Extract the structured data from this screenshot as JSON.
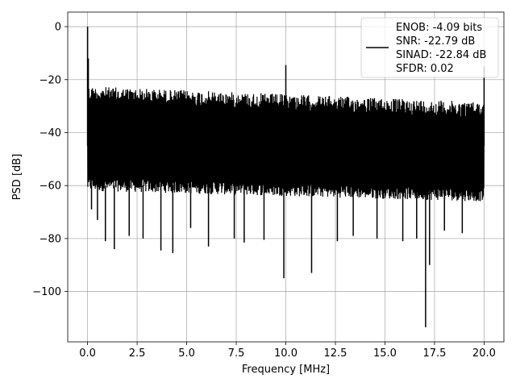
{
  "chart_data": {
    "type": "line",
    "title": "",
    "xlabel": "Frequency [MHz]",
    "ylabel": "PSD [dB]",
    "xlim": [
      -1.0,
      21.0
    ],
    "ylim": [
      -119.0,
      5.5
    ],
    "grid": true,
    "legend_placement": "top-right",
    "line_color": "#000000",
    "x_ticks": [
      {
        "value": 0.0,
        "label": "0.0"
      },
      {
        "value": 2.5,
        "label": "2.5"
      },
      {
        "value": 5.0,
        "label": "5.0"
      },
      {
        "value": 7.5,
        "label": "7.5"
      },
      {
        "value": 10.0,
        "label": "10.0"
      },
      {
        "value": 12.5,
        "label": "12.5"
      },
      {
        "value": 15.0,
        "label": "15.0"
      },
      {
        "value": 17.5,
        "label": "17.5"
      },
      {
        "value": 20.0,
        "label": "20.0"
      }
    ],
    "y_ticks": [
      {
        "value": 0,
        "label": "0"
      },
      {
        "value": -20,
        "label": "−20"
      },
      {
        "value": -40,
        "label": "−40"
      },
      {
        "value": -60,
        "label": "−60"
      },
      {
        "value": -80,
        "label": "−80"
      },
      {
        "value": -100,
        "label": "−100"
      }
    ],
    "legend_lines": [
      "ENOB: -4.09 bits",
      "SNR: -22.79 dB",
      "SINAD: -22.84 dB",
      "SFDR: 0.02"
    ],
    "series": [
      {
        "noise_band": {
          "x_range": [
            0.0,
            20.0
          ],
          "upper_start_db": -22.5,
          "upper_end_db": -28.5,
          "lower_start_db": -62.0,
          "lower_end_db": -66.0
        },
        "spikes": [
          {
            "x": 0.0,
            "y": 0
          },
          {
            "x": 0.04,
            "y": -12
          },
          {
            "x": 10.0,
            "y": -14.5
          },
          {
            "x": 20.0,
            "y": -15
          }
        ],
        "dips": [
          {
            "x": 0.2,
            "y": -69
          },
          {
            "x": 0.5,
            "y": -73
          },
          {
            "x": 0.9,
            "y": -81
          },
          {
            "x": 1.35,
            "y": -84
          },
          {
            "x": 2.1,
            "y": -79
          },
          {
            "x": 2.8,
            "y": -80
          },
          {
            "x": 3.7,
            "y": -84.5
          },
          {
            "x": 4.3,
            "y": -85.5
          },
          {
            "x": 5.2,
            "y": -76
          },
          {
            "x": 6.1,
            "y": -83
          },
          {
            "x": 7.4,
            "y": -80
          },
          {
            "x": 7.9,
            "y": -81.5
          },
          {
            "x": 8.9,
            "y": -80.5
          },
          {
            "x": 9.9,
            "y": -95
          },
          {
            "x": 11.3,
            "y": -93
          },
          {
            "x": 12.6,
            "y": -81
          },
          {
            "x": 13.4,
            "y": -79
          },
          {
            "x": 14.6,
            "y": -80
          },
          {
            "x": 15.9,
            "y": -81
          },
          {
            "x": 16.6,
            "y": -80
          },
          {
            "x": 17.05,
            "y": -113.5
          },
          {
            "x": 17.25,
            "y": -90
          },
          {
            "x": 18.0,
            "y": -77
          },
          {
            "x": 18.9,
            "y": -78
          }
        ]
      }
    ]
  }
}
